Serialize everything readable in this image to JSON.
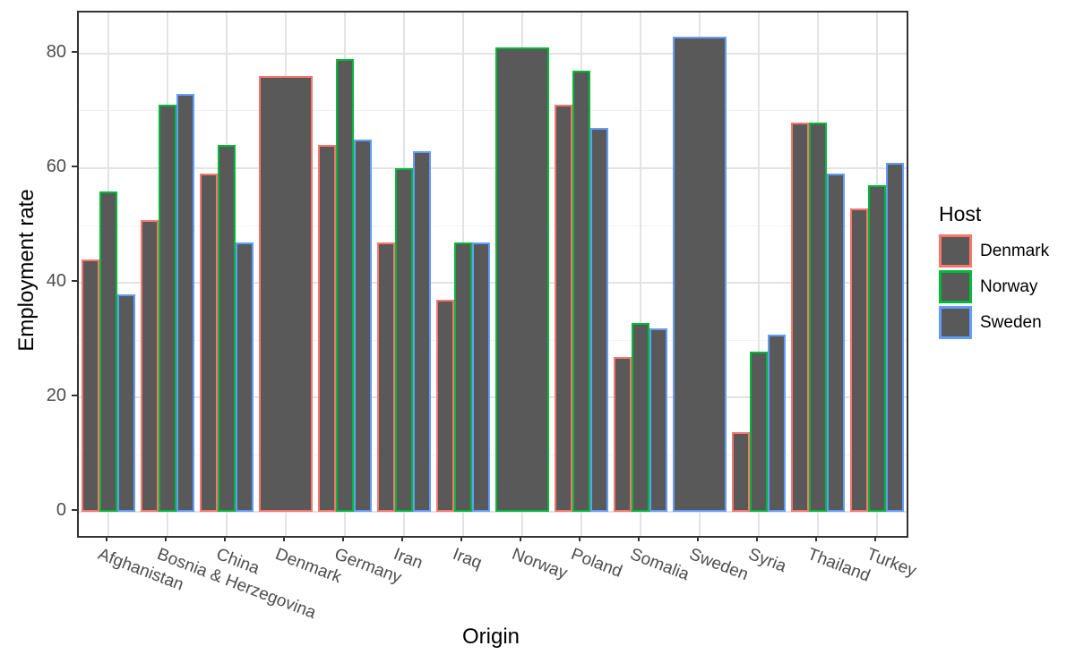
{
  "figure": {
    "background": "#FFFFFF",
    "panel_border_color": "#333333",
    "grid_major_color": "#E3E3E3",
    "grid_minor_color": "#F1F1F1",
    "tick_label_color": "#4D4D4D",
    "axis_title_color": "#000000"
  },
  "chart_data": {
    "type": "bar",
    "title": "",
    "xlabel": "Origin",
    "ylabel": "Employment rate",
    "legend_title": "Host",
    "legend_position": "right",
    "grid": true,
    "bar_fill": "#595959",
    "bar_group_width_fraction": 0.9,
    "categories": [
      "Afghanistan",
      "Bosnia & Herzegovina",
      "China",
      "Denmark",
      "Germany",
      "Iran",
      "Iraq",
      "Norway",
      "Poland",
      "Somalia",
      "Sweden",
      "Syria",
      "Thailand",
      "Turkey"
    ],
    "series": [
      {
        "name": "Denmark",
        "color": "#F8766D",
        "values": [
          44,
          51,
          59,
          76,
          64,
          47,
          37,
          null,
          71,
          27,
          null,
          14,
          68,
          53
        ]
      },
      {
        "name": "Norway",
        "color": "#00BA38",
        "values": [
          56,
          71,
          64,
          null,
          79,
          60,
          47,
          81,
          77,
          33,
          null,
          28,
          68,
          57
        ]
      },
      {
        "name": "Sweden",
        "color": "#619CFF",
        "values": [
          38,
          73,
          47,
          null,
          65,
          63,
          47,
          null,
          67,
          32,
          83,
          31,
          59,
          61
        ]
      }
    ],
    "y_ticks": [
      0,
      20,
      40,
      60,
      80
    ],
    "y_minor_ticks": [
      10,
      30,
      50,
      70
    ],
    "ylim": [
      -4.15,
      87.15
    ],
    "x_tick_angle_deg": 21
  }
}
